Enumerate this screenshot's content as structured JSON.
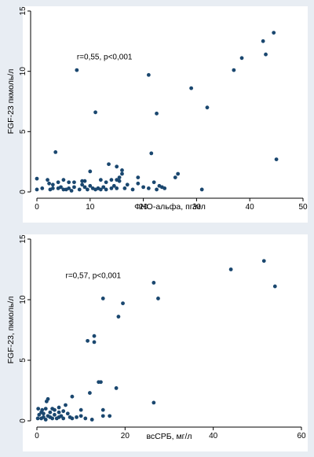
{
  "style": {
    "figure_background": "#e8edf3",
    "plot_background": "#ffffff",
    "point_color": "#1a476f",
    "axis_color": "#000000"
  },
  "chart_data": [
    {
      "type": "scatter",
      "title": "",
      "xlabel": "ФНО-альфа, пг/мл",
      "ylabel": "FGF-23 пкмоль/л",
      "xlim": [
        0,
        50
      ],
      "ylim": [
        0,
        15
      ],
      "xticks": [
        0,
        10,
        20,
        30,
        40,
        50
      ],
      "yticks": [
        0,
        5,
        10,
        15
      ],
      "grid": false,
      "annotation": {
        "text": "r=0,55, p<0,001",
        "x": 7.5,
        "y": 11.0
      },
      "points": [
        [
          0,
          0.2
        ],
        [
          0,
          1.1
        ],
        [
          1,
          0.3
        ],
        [
          2,
          1.0
        ],
        [
          2.3,
          0.7
        ],
        [
          2.5,
          0.2
        ],
        [
          3,
          0.6
        ],
        [
          3,
          0.3
        ],
        [
          3.5,
          3.3
        ],
        [
          4,
          0.3
        ],
        [
          4,
          0.8
        ],
        [
          4.5,
          0.4
        ],
        [
          5,
          0.2
        ],
        [
          5,
          1.0
        ],
        [
          5.5,
          0.2
        ],
        [
          6,
          0.3
        ],
        [
          6,
          0.8
        ],
        [
          6.5,
          0.1
        ],
        [
          7,
          0.4
        ],
        [
          7,
          0.8
        ],
        [
          7.5,
          10.1
        ],
        [
          8,
          0.2
        ],
        [
          8.5,
          0.6
        ],
        [
          8.5,
          0.9
        ],
        [
          9,
          0.4
        ],
        [
          9,
          0.9
        ],
        [
          9.5,
          0.2
        ],
        [
          10,
          1.7
        ],
        [
          10,
          0.5
        ],
        [
          10.5,
          0.3
        ],
        [
          11,
          0.2
        ],
        [
          11,
          6.6
        ],
        [
          11.5,
          0.3
        ],
        [
          11.5,
          0.3
        ],
        [
          12,
          0.2
        ],
        [
          12,
          1.0
        ],
        [
          12.5,
          0.4
        ],
        [
          13,
          0.2
        ],
        [
          13,
          0.8
        ],
        [
          13.5,
          2.3
        ],
        [
          14,
          0.3
        ],
        [
          14,
          1.0
        ],
        [
          14.5,
          0.5
        ],
        [
          15,
          0.3
        ],
        [
          15,
          1.0
        ],
        [
          15,
          2.1
        ],
        [
          15.5,
          1.2
        ],
        [
          15.5,
          0.9
        ],
        [
          16,
          1.5
        ],
        [
          16,
          1.8
        ],
        [
          16.5,
          0.3
        ],
        [
          17,
          0.6
        ],
        [
          18,
          0.2
        ],
        [
          19,
          0.7
        ],
        [
          19,
          1.2
        ],
        [
          20,
          0.4
        ],
        [
          21,
          9.7
        ],
        [
          21,
          0.3
        ],
        [
          21.5,
          3.2
        ],
        [
          22,
          0.8
        ],
        [
          22.5,
          6.5
        ],
        [
          22.5,
          0.2
        ],
        [
          23,
          0.5
        ],
        [
          23.5,
          0.4
        ],
        [
          24,
          0.3
        ],
        [
          26,
          1.2
        ],
        [
          26.5,
          1.5
        ],
        [
          29,
          8.6
        ],
        [
          31,
          0.2
        ],
        [
          32,
          7.0
        ],
        [
          37,
          10.1
        ],
        [
          38.5,
          11.1
        ],
        [
          42.5,
          12.5
        ],
        [
          43,
          11.4
        ],
        [
          44.5,
          13.2
        ],
        [
          45,
          2.7
        ]
      ]
    },
    {
      "type": "scatter",
      "title": "",
      "xlabel": "всСРБ, мг/л",
      "ylabel": "FGF-23, пкмоль/л",
      "xlim": [
        0,
        60
      ],
      "ylim": [
        0,
        15
      ],
      "xticks": [
        0,
        20,
        40,
        60
      ],
      "yticks": [
        0,
        5,
        10,
        15
      ],
      "grid": false,
      "annotation": {
        "text": "r=0,57, p<0,001",
        "x": 6.5,
        "y": 11.8
      },
      "points": [
        [
          0.2,
          0.2
        ],
        [
          0.3,
          1.0
        ],
        [
          0.5,
          0.5
        ],
        [
          1,
          0.2
        ],
        [
          1,
          0.7
        ],
        [
          1.2,
          0.9
        ],
        [
          1.5,
          0.3
        ],
        [
          1.5,
          0.6
        ],
        [
          2,
          1.0
        ],
        [
          2,
          0.1
        ],
        [
          2.2,
          1.6
        ],
        [
          2.5,
          0.4
        ],
        [
          2.5,
          1.8
        ],
        [
          3,
          0.3
        ],
        [
          3,
          0.7
        ],
        [
          3.5,
          0.2
        ],
        [
          3.5,
          1.0
        ],
        [
          4,
          0.5
        ],
        [
          4,
          0.9
        ],
        [
          4.5,
          0.2
        ],
        [
          5,
          0.3
        ],
        [
          5,
          0.7
        ],
        [
          5,
          1.1
        ],
        [
          5.5,
          0.4
        ],
        [
          6,
          0.2
        ],
        [
          6,
          0.8
        ],
        [
          6.5,
          1.3
        ],
        [
          7,
          0.6
        ],
        [
          7.5,
          0.3
        ],
        [
          8,
          2.0
        ],
        [
          8,
          0.2
        ],
        [
          9,
          0.3
        ],
        [
          10,
          0.9
        ],
        [
          10,
          0.4
        ],
        [
          11,
          0.2
        ],
        [
          11.5,
          6.6
        ],
        [
          12,
          2.3
        ],
        [
          12.5,
          0.1
        ],
        [
          13,
          6.5
        ],
        [
          13,
          7.0
        ],
        [
          14,
          3.2
        ],
        [
          14.5,
          3.2
        ],
        [
          15,
          10.1
        ],
        [
          15,
          0.9
        ],
        [
          15,
          0.4
        ],
        [
          16.5,
          0.4
        ],
        [
          18,
          2.7
        ],
        [
          18.5,
          8.6
        ],
        [
          19.5,
          9.7
        ],
        [
          26.5,
          1.5
        ],
        [
          26.5,
          11.4
        ],
        [
          27.5,
          10.1
        ],
        [
          44,
          12.5
        ],
        [
          51.5,
          13.2
        ],
        [
          54,
          11.1
        ]
      ]
    }
  ]
}
